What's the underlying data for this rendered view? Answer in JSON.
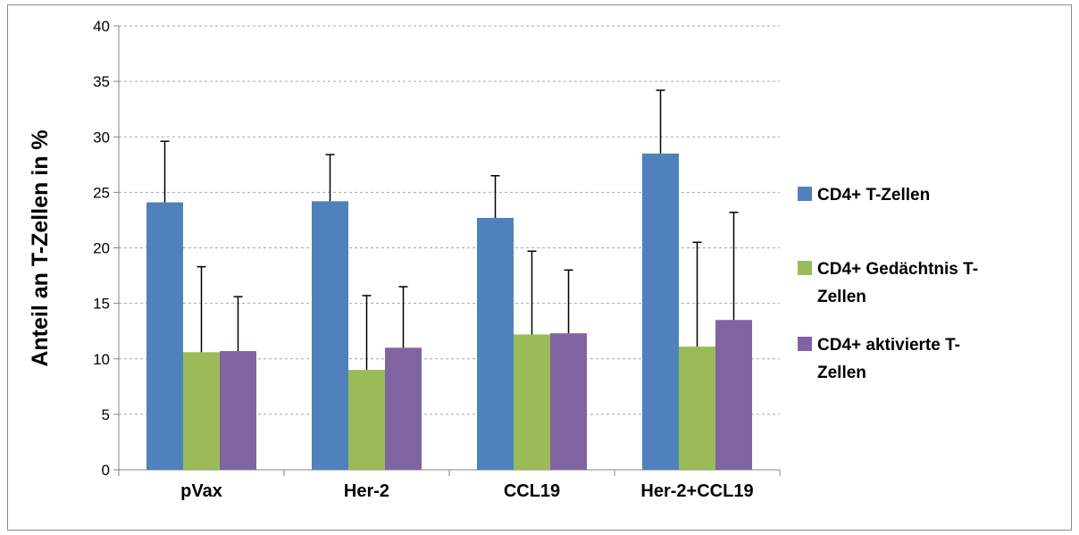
{
  "chart_data": {
    "type": "bar",
    "title": "",
    "xlabel": "",
    "ylabel": "Anteil an T-Zellen in %",
    "ylim": [
      0,
      40
    ],
    "yticks": [
      0,
      5,
      10,
      15,
      20,
      25,
      30,
      35,
      40
    ],
    "grid": true,
    "legend_position": "right",
    "categories": [
      "pVax",
      "Her-2",
      "CCL19",
      "Her-2+CCL19"
    ],
    "series": [
      {
        "name": "CD4+ T-Zellen",
        "name_lines": [
          "CD4+ T-Zellen"
        ],
        "color": "#4f81bd",
        "values": [
          24.1,
          24.2,
          22.7,
          28.5
        ],
        "error": [
          5.5,
          4.2,
          3.8,
          5.7
        ]
      },
      {
        "name": "CD4+ Gedächtnis T-Zellen",
        "name_lines": [
          "CD4+ Gedächtnis T-",
          "Zellen"
        ],
        "color": "#9bbb59",
        "values": [
          10.6,
          9.0,
          12.2,
          11.1
        ],
        "error": [
          7.7,
          6.7,
          7.5,
          9.4
        ]
      },
      {
        "name": "CD4+ aktivierte T-Zellen",
        "name_lines": [
          "CD4+ aktivierte T-",
          "Zellen"
        ],
        "color": "#8064a2",
        "values": [
          10.7,
          11.0,
          12.3,
          13.5
        ],
        "error": [
          4.9,
          5.5,
          5.7,
          9.7
        ]
      }
    ]
  }
}
